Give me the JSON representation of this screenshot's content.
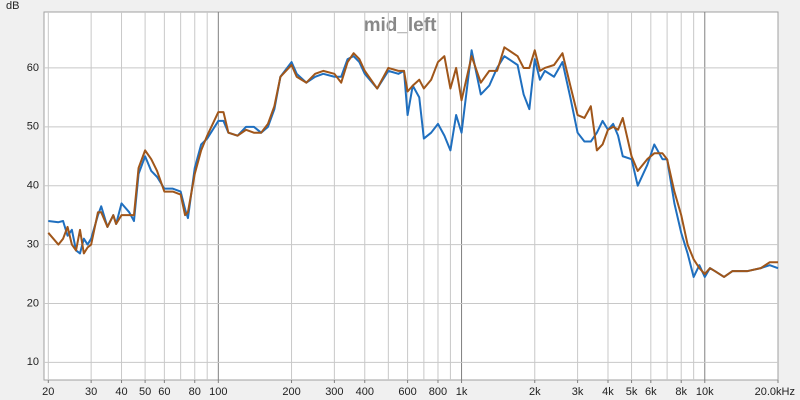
{
  "chart_data": {
    "type": "line",
    "title": "mid_left",
    "ylabel": "dB",
    "xscale": "log",
    "x": [
      20,
      22,
      23,
      24,
      25,
      26,
      27,
      28,
      29,
      30,
      32,
      33,
      35,
      37,
      38,
      40,
      43,
      45,
      47,
      50,
      53,
      56,
      60,
      65,
      70,
      73,
      75,
      80,
      85,
      90,
      100,
      105,
      110,
      120,
      130,
      140,
      150,
      160,
      170,
      180,
      200,
      210,
      230,
      250,
      270,
      300,
      320,
      340,
      360,
      380,
      400,
      450,
      500,
      550,
      580,
      600,
      630,
      670,
      700,
      750,
      800,
      850,
      900,
      950,
      1000,
      1100,
      1200,
      1300,
      1400,
      1500,
      1700,
      1800,
      1900,
      2000,
      2100,
      2200,
      2400,
      2600,
      2800,
      3000,
      3200,
      3400,
      3600,
      3800,
      4000,
      4200,
      4400,
      4600,
      5000,
      5300,
      5800,
      6200,
      6700,
      7000,
      7500,
      8000,
      8500,
      9000,
      9500,
      10000,
      10500,
      11000,
      12000,
      13000,
      15000,
      17000,
      18500,
      20000
    ],
    "series": [
      {
        "color": "#1f6fbf",
        "values": [
          34,
          33.8,
          34,
          31.5,
          32.5,
          29,
          28.5,
          31,
          30,
          31,
          35,
          36.5,
          33,
          35,
          33.5,
          37,
          35.5,
          34,
          42,
          45,
          42.5,
          41.5,
          39.5,
          39.5,
          39,
          36,
          34.5,
          43,
          47,
          48,
          51,
          51,
          49,
          48.5,
          50,
          50,
          49,
          50,
          53,
          58.5,
          61,
          59,
          57.5,
          58.5,
          59,
          58.5,
          58.5,
          61.5,
          62,
          61,
          59,
          56.5,
          59.5,
          59,
          59.5,
          52,
          57,
          55,
          48,
          49,
          50.5,
          48.5,
          46,
          52,
          49,
          63,
          55.5,
          57,
          60,
          62,
          60.5,
          55.5,
          53,
          61.5,
          58,
          59.5,
          58.5,
          61,
          55,
          49,
          47.5,
          47.5,
          49,
          51,
          49.5,
          50.5,
          48.5,
          45,
          44.5,
          40,
          43.5,
          47,
          44.5,
          44.5,
          37,
          32,
          28.5,
          24.5,
          26.5,
          24.5,
          26,
          25.5,
          24.5,
          25.5,
          25.5,
          26,
          26.5,
          26
        ]
      },
      {
        "color": "#a0561a",
        "values": [
          32,
          30,
          31,
          33,
          30,
          29,
          32.5,
          28.5,
          29.5,
          30,
          35.5,
          35.5,
          33,
          35,
          33.5,
          35,
          35,
          35,
          43,
          46,
          44.5,
          42.5,
          39,
          39,
          38.5,
          35,
          35.5,
          42,
          46,
          48.5,
          52.5,
          52.5,
          49,
          48.5,
          49.5,
          49,
          49,
          50.5,
          53.5,
          58.5,
          60.5,
          58.5,
          57.5,
          59,
          59.5,
          59,
          57.5,
          61,
          62.5,
          61.5,
          59.5,
          56.5,
          60,
          59.5,
          59.5,
          56,
          57,
          58,
          56.5,
          58,
          61,
          62,
          56.5,
          60,
          54.5,
          62,
          57.5,
          59.5,
          59.5,
          63.5,
          62,
          60,
          60,
          63,
          59.5,
          60,
          60.5,
          62.5,
          57,
          52,
          51.5,
          53.5,
          46,
          47,
          49.5,
          50,
          49.5,
          51.5,
          45,
          42.5,
          44.5,
          45.5,
          45.5,
          44.5,
          39,
          35,
          30,
          27.5,
          26,
          25,
          26,
          25.5,
          24.5,
          25.5,
          25.5,
          26,
          27,
          27
        ]
      }
    ],
    "xlim": [
      19.2,
      20000
    ],
    "ylim": [
      7,
      69.5
    ],
    "yticks": [
      10,
      20,
      30,
      40,
      50,
      60
    ],
    "xticks": [
      20,
      30,
      40,
      50,
      60,
      80,
      100,
      200,
      300,
      400,
      600,
      800,
      {
        "value": 1000,
        "label": "1k"
      },
      {
        "value": 2000,
        "label": "2k"
      },
      {
        "value": 3000,
        "label": "3k"
      },
      {
        "value": 4000,
        "label": "4k"
      },
      {
        "value": 5000,
        "label": "5k"
      },
      {
        "value": 6000,
        "label": "6k"
      },
      {
        "value": 8000,
        "label": "8k"
      },
      {
        "value": 10000,
        "label": "10k"
      },
      {
        "value": 20000,
        "label": "20.0kHz"
      }
    ],
    "xgrid": [
      20,
      30,
      40,
      50,
      60,
      70,
      80,
      90,
      100,
      200,
      300,
      400,
      500,
      600,
      700,
      800,
      900,
      1000,
      2000,
      3000,
      4000,
      5000,
      6000,
      7000,
      8000,
      9000,
      10000
    ],
    "xmajor": [
      100,
      1000,
      10000
    ],
    "grid": true
  }
}
